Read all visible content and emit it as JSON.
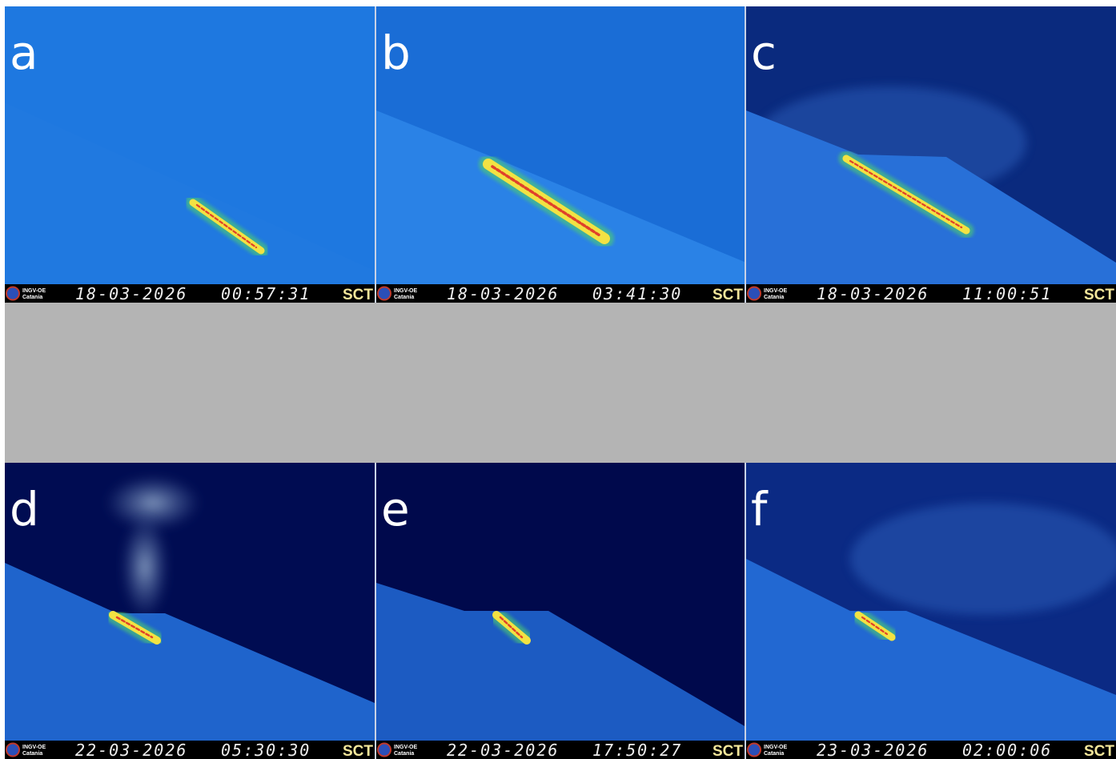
{
  "panels": [
    {
      "label": "a",
      "logo": [
        "INGV-OE",
        "Catania"
      ],
      "date": "18-03-2026",
      "time": "00:57:31",
      "station": "SCT"
    },
    {
      "label": "b",
      "logo": [
        "INGV-OE",
        "Catania"
      ],
      "date": "18-03-2026",
      "time": "03:41:30",
      "station": "SCT"
    },
    {
      "label": "c",
      "logo": [
        "INGV-OE",
        "Catania"
      ],
      "date": "18-03-2026",
      "time": "11:00:51",
      "station": "SCT"
    },
    {
      "label": "d",
      "logo": [
        "INGV-OE",
        "Catania"
      ],
      "date": "22-03-2026",
      "time": "05:30:30",
      "station": "SCT"
    },
    {
      "label": "e",
      "logo": [
        "INGV-OE",
        "Catania"
      ],
      "date": "22-03-2026",
      "time": "17:50:27",
      "station": "SCT"
    },
    {
      "label": "f",
      "logo": [
        "INGV-OE",
        "Catania"
      ],
      "date": "23-03-2026",
      "time": "02:00:06",
      "station": "SCT"
    }
  ]
}
